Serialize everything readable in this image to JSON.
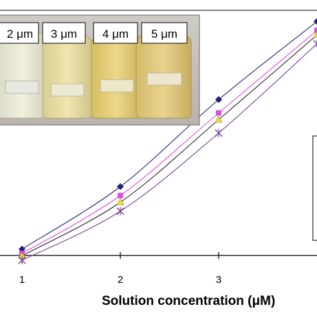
{
  "chart_data": {
    "type": "line",
    "xlabel": "Solution concentration (μM)",
    "x": [
      1,
      2,
      3,
      4
    ],
    "xticks": [
      "1",
      "2",
      "3"
    ],
    "legend": "right (partially visible)",
    "grid": false,
    "series": [
      {
        "marker": "diamond",
        "color": "#1f1f7a",
        "values": [
          0.33,
          0.61,
          1.0,
          1.35
        ]
      },
      {
        "marker": "square",
        "color": "#e04be0",
        "values": [
          0.31,
          0.57,
          0.94,
          1.31
        ]
      },
      {
        "marker": "triangle",
        "color": "#f0e030",
        "values": [
          0.3,
          0.54,
          0.91,
          1.29
        ]
      },
      {
        "marker": "x",
        "color": "#7a3f9a",
        "values": [
          0.28,
          0.5,
          0.85,
          1.25
        ]
      }
    ],
    "inset": {
      "labels": [
        "2 μm",
        "3 μm",
        "4 μm",
        "5 μm"
      ]
    }
  }
}
